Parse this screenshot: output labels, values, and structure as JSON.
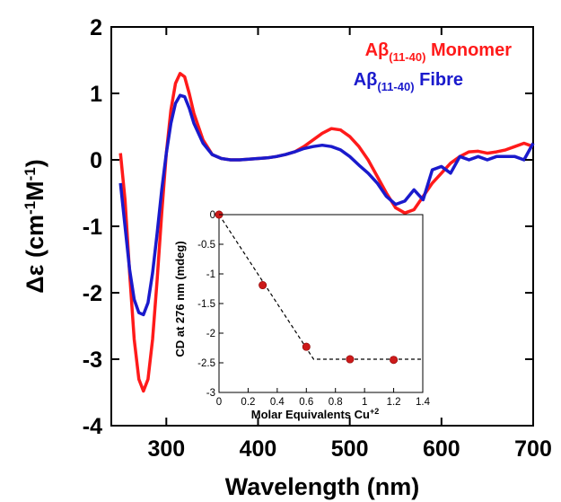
{
  "chart_data": [
    {
      "type": "line",
      "xlabel": "Wavelength (nm)",
      "ylabel": {
        "base": "Δε (cm",
        "sup1": "-1",
        "mid": "M",
        "sup2": "-1",
        "end": ")"
      },
      "xlim": [
        240,
        700
      ],
      "ylim": [
        -4,
        2
      ],
      "xticks": [
        "300",
        "400",
        "500",
        "600",
        "700"
      ],
      "xtick_values": [
        300,
        400,
        500,
        600,
        700
      ],
      "yticks": [
        "-4",
        "-3",
        "-2",
        "-1",
        "0",
        "1",
        "2"
      ],
      "ytick_values": [
        -4,
        -3,
        -2,
        -1,
        0,
        1,
        2
      ],
      "grid": false,
      "legend_position": "top-right",
      "series": [
        {
          "name": {
            "base": "Aβ",
            "sub": "(11-40)",
            "rest": " Monomer"
          },
          "color": "#ff1a1a",
          "x": [
            250,
            255,
            260,
            265,
            270,
            275,
            280,
            285,
            290,
            295,
            300,
            305,
            310,
            315,
            320,
            325,
            330,
            340,
            350,
            360,
            370,
            380,
            390,
            400,
            410,
            420,
            430,
            440,
            450,
            460,
            470,
            480,
            490,
            500,
            510,
            520,
            530,
            540,
            550,
            560,
            570,
            580,
            590,
            600,
            610,
            620,
            630,
            640,
            650,
            660,
            670,
            680,
            690,
            700
          ],
          "y": [
            0.1,
            -0.6,
            -1.7,
            -2.7,
            -3.3,
            -3.48,
            -3.3,
            -2.7,
            -1.8,
            -0.8,
            0.1,
            0.75,
            1.15,
            1.3,
            1.25,
            1.0,
            0.7,
            0.3,
            0.08,
            0.02,
            0.0,
            0.0,
            0.01,
            0.02,
            0.03,
            0.05,
            0.08,
            0.12,
            0.2,
            0.3,
            0.4,
            0.47,
            0.45,
            0.35,
            0.2,
            0.0,
            -0.25,
            -0.5,
            -0.72,
            -0.8,
            -0.75,
            -0.55,
            -0.35,
            -0.2,
            -0.05,
            0.05,
            0.12,
            0.13,
            0.1,
            0.12,
            0.15,
            0.2,
            0.25,
            0.2
          ]
        },
        {
          "name": {
            "base": "Aβ",
            "sub": "(11-40)",
            "rest": " Fibre"
          },
          "color": "#1a1acc",
          "x": [
            250,
            255,
            260,
            265,
            270,
            275,
            280,
            285,
            290,
            295,
            300,
            305,
            310,
            315,
            320,
            325,
            330,
            340,
            350,
            360,
            370,
            380,
            390,
            400,
            410,
            420,
            430,
            440,
            450,
            460,
            470,
            480,
            490,
            500,
            510,
            520,
            530,
            540,
            550,
            560,
            570,
            580,
            590,
            600,
            610,
            620,
            630,
            640,
            650,
            660,
            670,
            680,
            690,
            700
          ],
          "y": [
            -0.35,
            -1.0,
            -1.65,
            -2.1,
            -2.3,
            -2.33,
            -2.15,
            -1.7,
            -1.1,
            -0.45,
            0.1,
            0.55,
            0.85,
            0.97,
            0.95,
            0.78,
            0.55,
            0.25,
            0.08,
            0.02,
            0.0,
            0.0,
            0.01,
            0.02,
            0.03,
            0.05,
            0.08,
            0.12,
            0.17,
            0.2,
            0.22,
            0.2,
            0.15,
            0.05,
            -0.08,
            -0.2,
            -0.35,
            -0.55,
            -0.67,
            -0.62,
            -0.45,
            -0.6,
            -0.15,
            -0.1,
            -0.2,
            0.05,
            0.0,
            0.05,
            0.0,
            0.05,
            0.05,
            0.05,
            0.0,
            0.25
          ]
        }
      ]
    },
    {
      "type": "scatter",
      "xlabel": {
        "base": "Molar Equivalents Cu",
        "sup": "+2"
      },
      "ylabel": "CD at 276 nm (mdeg)",
      "xlim": [
        0,
        1.4
      ],
      "ylim": [
        -3,
        0
      ],
      "xticks": [
        "0",
        "0.2",
        "0.4",
        "0.6",
        "0.8",
        "1",
        "1.2",
        "1.4"
      ],
      "xtick_values": [
        0,
        0.2,
        0.4,
        0.6,
        0.8,
        1.0,
        1.2,
        1.4
      ],
      "yticks": [
        "0",
        "-0.5",
        "-1",
        "-1.5",
        "-2",
        "-2.5",
        "-3"
      ],
      "ytick_values": [
        0,
        -0.5,
        -1,
        -1.5,
        -2,
        -2.5,
        -3
      ],
      "grid": false,
      "points": {
        "x": [
          0,
          0.3,
          0.6,
          0.9,
          1.2
        ],
        "y": [
          0,
          -1.19,
          -2.23,
          -2.44,
          -2.45
        ],
        "color": "#cc1a1a"
      },
      "fit": {
        "x": [
          0,
          0.65,
          1.4
        ],
        "y": [
          0,
          -2.44,
          -2.44
        ],
        "style": "dashed"
      }
    }
  ]
}
